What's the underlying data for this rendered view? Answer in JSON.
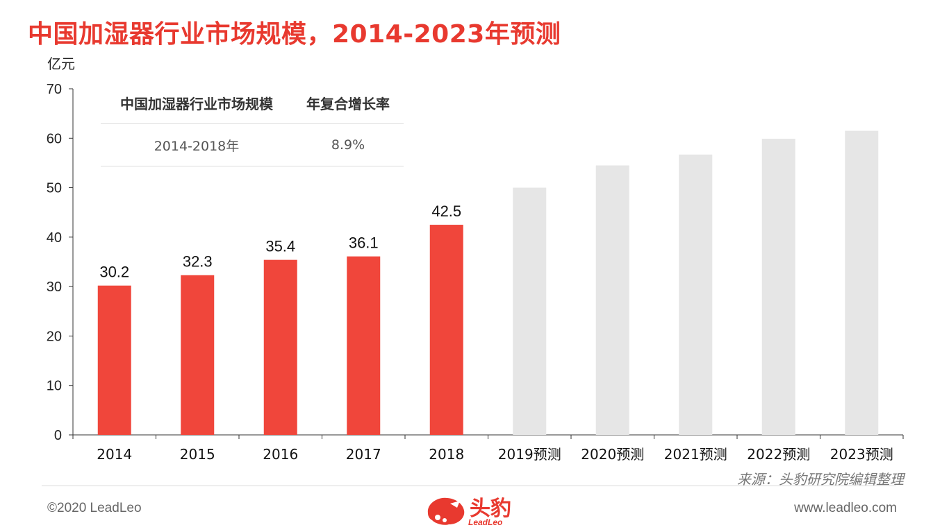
{
  "title": "中国加湿器行业市场规模，2014-2023年预测",
  "unit": "亿元",
  "table": {
    "header": [
      "中国加湿器行业市场规模",
      "年复合增长率"
    ],
    "row": [
      "2014-2018年",
      "8.9%"
    ]
  },
  "source": "来源：头豹研究院编辑整理",
  "footer": {
    "copyright": "©2020 LeadLeo",
    "website": "www.leadleo.com",
    "logo_text": "头豹",
    "logo_sub": "LeadLeo"
  },
  "colors": {
    "actual": "#f0463b",
    "forecast": "#e6e6e6",
    "title": "#e8392f"
  },
  "chart_data": {
    "type": "bar",
    "categories": [
      "2014",
      "2015",
      "2016",
      "2017",
      "2018",
      "2019预测",
      "2020预测",
      "2021预测",
      "2022预测",
      "2023预测"
    ],
    "values": [
      30.2,
      32.3,
      35.4,
      36.1,
      42.5,
      50.0,
      54.5,
      56.7,
      59.9,
      61.5
    ],
    "data_labels": [
      "30.2",
      "32.3",
      "35.4",
      "36.1",
      "42.5",
      "",
      "",
      "",
      "",
      ""
    ],
    "forecast_from_index": 5,
    "ylabel": "亿元",
    "ylim": [
      0,
      70
    ],
    "yticks": [
      0,
      10,
      20,
      30,
      40,
      50,
      60,
      70
    ],
    "grid": false
  }
}
